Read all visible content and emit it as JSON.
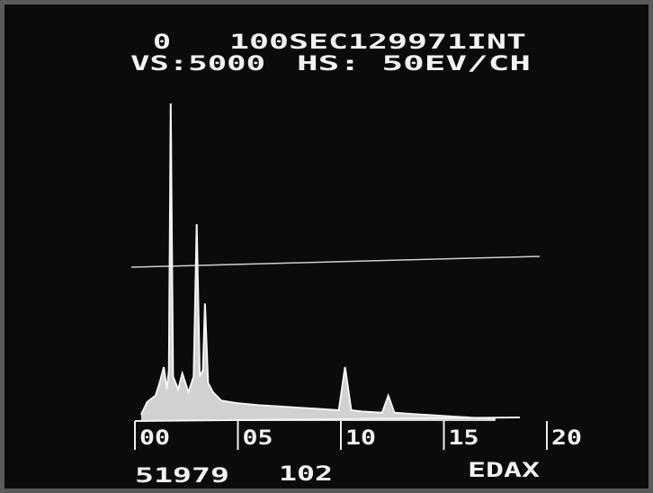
{
  "chart_data": {
    "type": "area",
    "header": [
      "0",
      "100SEC129971INT",
      "VS:5000",
      "HS: 50EV/CH"
    ],
    "footer": [
      "51979",
      "102",
      "EDAX"
    ],
    "x": [
      0.3,
      0.6,
      1.0,
      1.2,
      1.4,
      1.55,
      1.65,
      1.74,
      1.85,
      2.1,
      2.3,
      2.6,
      2.85,
      3.0,
      3.15,
      3.3,
      3.4,
      3.55,
      3.8,
      4.2,
      5.0,
      6.0,
      7.0,
      8.0,
      9.0,
      9.9,
      10.2,
      10.5,
      11.0,
      12.0,
      12.3,
      12.6,
      13.5,
      14.5,
      15.5,
      16.5,
      17.5
    ],
    "values": [
      100,
      300,
      400,
      600,
      850,
      500,
      800,
      5000,
      700,
      500,
      750,
      450,
      700,
      3100,
      700,
      800,
      1850,
      600,
      450,
      320,
      280,
      250,
      230,
      210,
      190,
      170,
      850,
      170,
      150,
      130,
      400,
      130,
      110,
      90,
      70,
      50,
      40
    ],
    "color": "#f4f4f4",
    "xlim": [
      0,
      20
    ],
    "xticks": [
      {
        "value": 0,
        "label": "00"
      },
      {
        "value": 5,
        "label": "05"
      },
      10,
      15,
      20
    ],
    "ylim": [
      0,
      5000
    ]
  }
}
